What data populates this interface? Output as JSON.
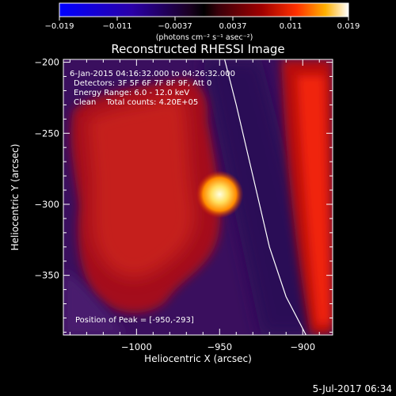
{
  "colorbar": {
    "ticks": [
      "−0.019",
      "−0.011",
      "−0.0037",
      "0.0037",
      "0.011",
      "0.019"
    ],
    "units": "(photons cm⁻² s⁻¹ asec⁻²)",
    "min": -0.019,
    "max": 0.019
  },
  "chart_data": {
    "type": "heatmap",
    "title": "Reconstructed RHESSI Image",
    "xlabel": "Heliocentric X (arcsec)",
    "ylabel": "Heliocentric Y (arcsec)",
    "xlim": [
      -1044,
      -882
    ],
    "ylim": [
      -392,
      -198
    ],
    "x_ticks": [
      -1000,
      -950,
      -900
    ],
    "x_tick_labels": [
      "−1000",
      "−950",
      "−900"
    ],
    "y_ticks": [
      -200,
      -250,
      -300,
      -350
    ],
    "y_tick_labels": [
      "−200",
      "−250",
      "−300",
      "−350"
    ],
    "peak": {
      "x": -950,
      "y": -293
    },
    "annotations": [
      "6-Jan-2015 04:16:32.000 to 04:26:32.000",
      "Detectors: 3F 5F 6F 7F 8F 9F, Att 0",
      "Energy Range: 6.0 - 12.0 keV",
      "Clean    Total counts: 4.20E+05",
      "Position of Peak = [-950,-293]"
    ],
    "limb_curve": {
      "x": [
        -947,
        -940,
        -930,
        -920,
        -910,
        -898
      ],
      "y": [
        -198,
        -230,
        -280,
        -330,
        -365,
        -392
      ]
    }
  },
  "footer": {
    "timestamp": "5-Jul-2017 06:34"
  }
}
